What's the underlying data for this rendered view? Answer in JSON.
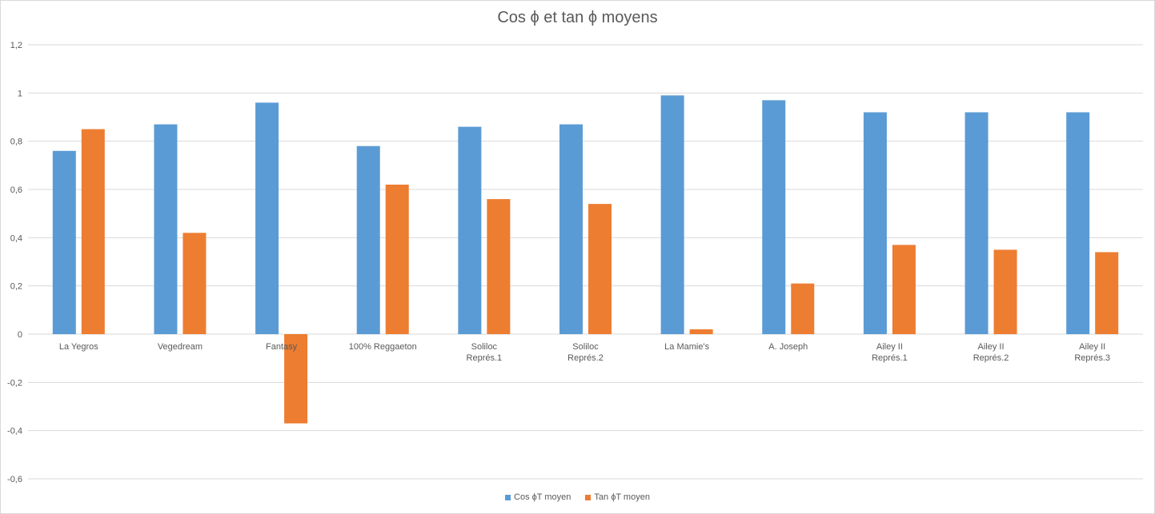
{
  "chart_data": {
    "type": "bar",
    "title": "Cos ϕ et tan ϕ moyens",
    "categories": [
      [
        "La Yegros"
      ],
      [
        "Vegedream"
      ],
      [
        "Fantasy"
      ],
      [
        "100% Reggaeton"
      ],
      [
        "Soliloc",
        "Représ.1"
      ],
      [
        "Soliloc",
        "Représ.2"
      ],
      [
        "La Mamie's"
      ],
      [
        "A. Joseph"
      ],
      [
        "Ailey II",
        "Représ.1"
      ],
      [
        "Ailey II",
        "Représ.2"
      ],
      [
        "Ailey II",
        "Représ.3"
      ]
    ],
    "series": [
      {
        "name": "Cos ϕT moyen",
        "color": "#5b9bd5",
        "values": [
          0.76,
          0.87,
          0.96,
          0.78,
          0.86,
          0.87,
          0.99,
          0.97,
          0.92,
          0.92,
          0.92
        ]
      },
      {
        "name": "Tan ϕT moyen",
        "color": "#ed7d31",
        "values": [
          0.85,
          0.42,
          -0.37,
          0.62,
          0.56,
          0.54,
          0.02,
          0.21,
          0.37,
          0.35,
          0.34
        ]
      }
    ],
    "yticks": [
      "-0,6",
      "-0,4",
      "-0,2",
      "0",
      "0,2",
      "0,4",
      "0,6",
      "0,8",
      "1",
      "1,2"
    ],
    "ylim": [
      -0.6,
      1.2
    ],
    "grid": true,
    "legend_position": "bottom"
  }
}
